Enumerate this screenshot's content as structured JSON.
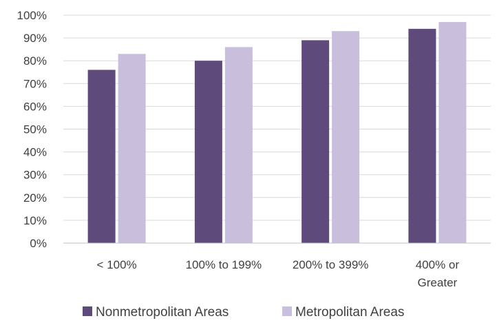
{
  "chart_data": {
    "type": "bar",
    "title": "",
    "xlabel": "",
    "ylabel": "",
    "categories": [
      [
        "< 100%"
      ],
      [
        "100% to 199%"
      ],
      [
        "200% to 399%"
      ],
      [
        "400% or",
        "Greater"
      ]
    ],
    "series": [
      {
        "name": "Nonmetropolitan Areas",
        "color": "#5e4a7b",
        "values": [
          0.76,
          0.8,
          0.89,
          0.94
        ]
      },
      {
        "name": "Metropolitan Areas",
        "color": "#c9bfdc",
        "values": [
          0.83,
          0.86,
          0.93,
          0.97
        ]
      }
    ],
    "ylim": [
      0,
      1
    ],
    "yticks": [
      0,
      0.1,
      0.2,
      0.3,
      0.4,
      0.5,
      0.6,
      0.7,
      0.8,
      0.9,
      1.0
    ],
    "ytick_labels": [
      "0%",
      "10%",
      "20%",
      "30%",
      "40%",
      "50%",
      "60%",
      "70%",
      "80%",
      "90%",
      "100%"
    ],
    "grid": true,
    "gridline_color": "#d9d9d9",
    "axis_line_color": "#bfbfbf",
    "legend_position": "bottom"
  }
}
